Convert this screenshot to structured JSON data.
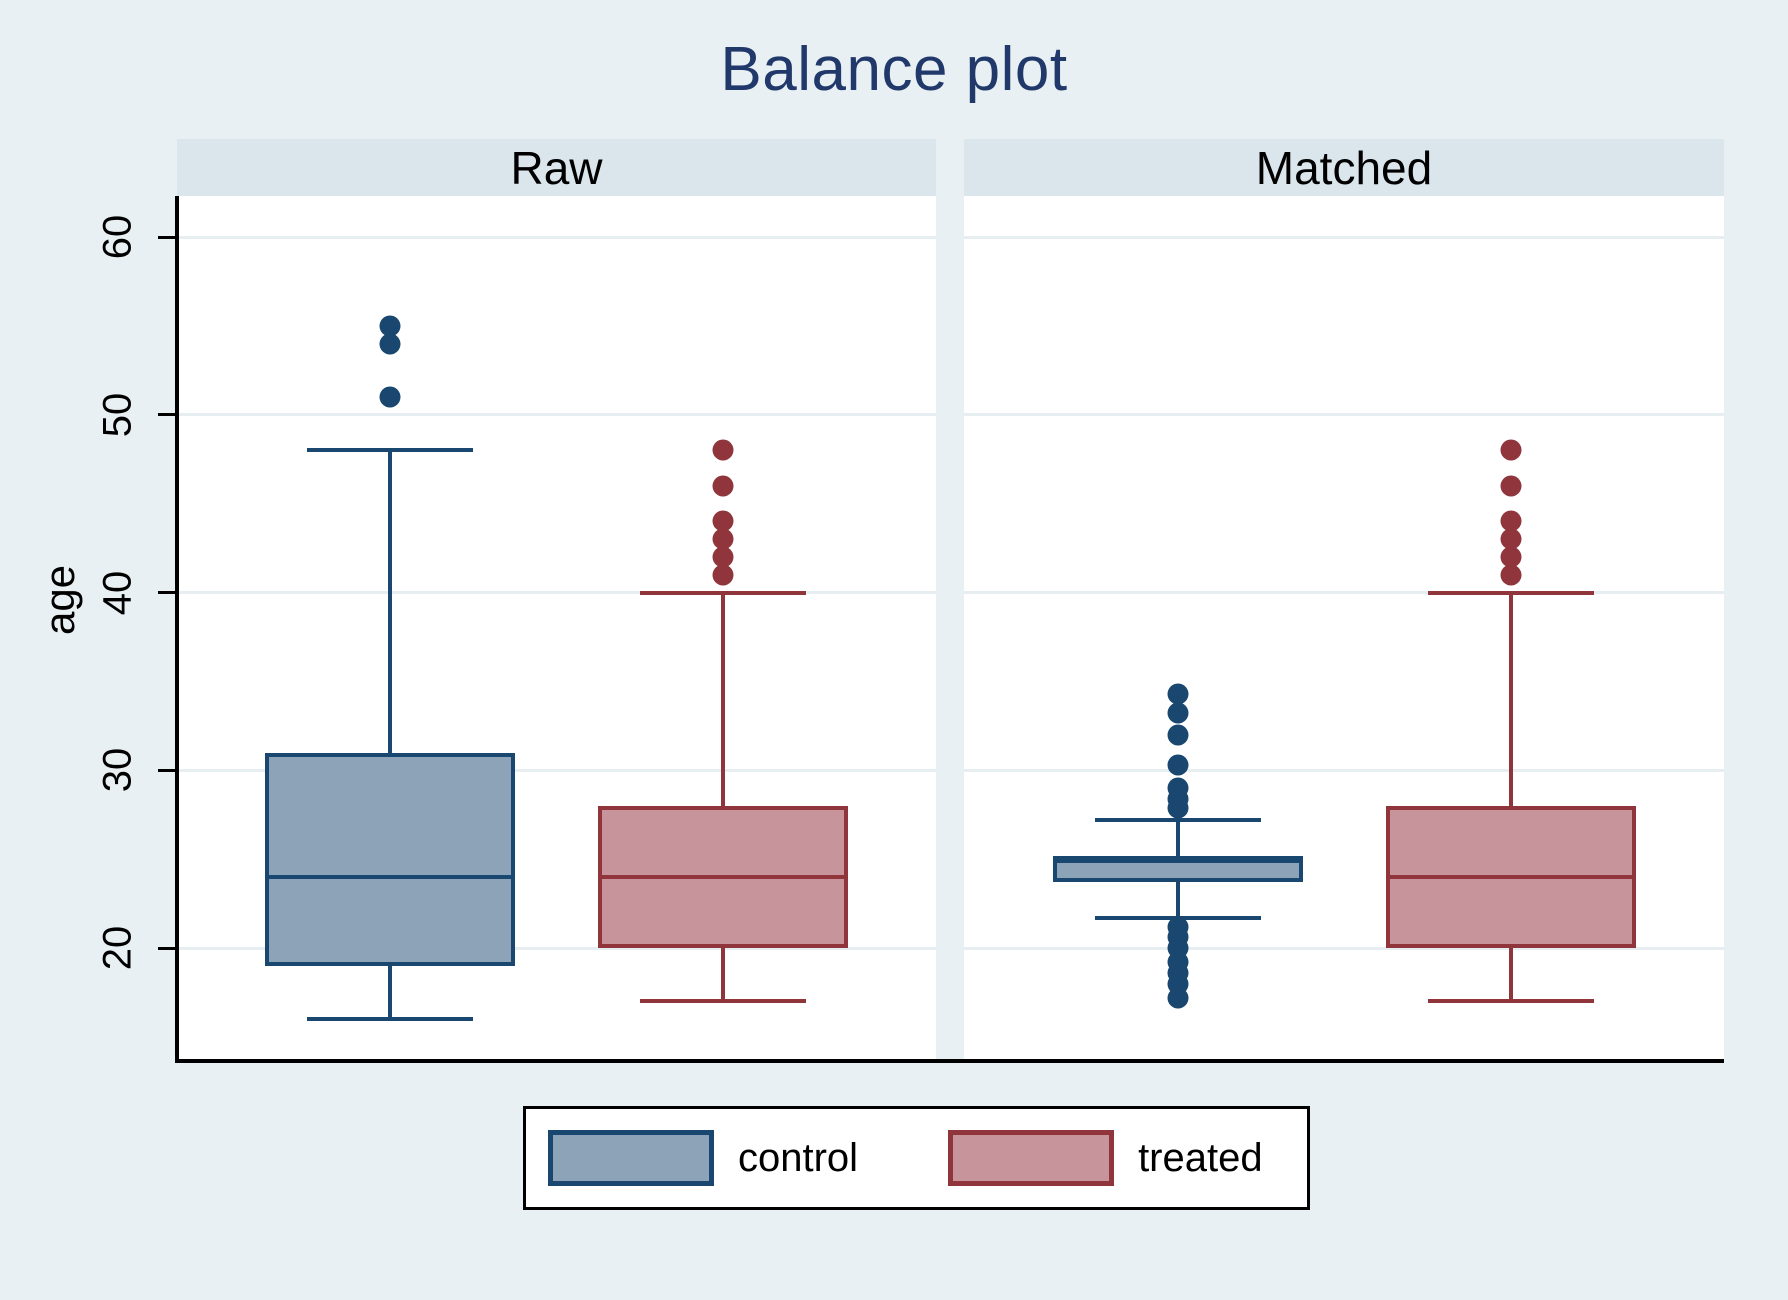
{
  "title": "Balance plot",
  "ylabel": "age",
  "chart_data": {
    "type": "boxplot",
    "title": "Balance plot",
    "ylabel": "age",
    "xlabel": "",
    "y_ticks": [
      20,
      30,
      40,
      50,
      60
    ],
    "y_range_visible": [
      13.8,
      62.3
    ],
    "grid": true,
    "legend_position": "bottom-center",
    "panel_labels": [
      "Raw",
      "Matched"
    ],
    "series": [
      {
        "name": "control",
        "fill": "#8da3b8",
        "stroke": "#1a476f"
      },
      {
        "name": "treated",
        "fill": "#c8949b",
        "stroke": "#90353b"
      }
    ],
    "panels": [
      {
        "label": "Raw",
        "groups": [
          {
            "series": "control",
            "lower_whisker": 16,
            "q1": 19,
            "median": 24,
            "q3": 31,
            "upper_whisker": 48,
            "outliers": [
              51,
              54,
              55
            ]
          },
          {
            "series": "treated",
            "lower_whisker": 17,
            "q1": 20,
            "median": 24,
            "q3": 28,
            "upper_whisker": 40,
            "outliers": [
              41,
              42,
              43,
              44,
              46,
              48
            ]
          }
        ]
      },
      {
        "label": "Matched",
        "groups": [
          {
            "series": "control",
            "lower_whisker": 21.7,
            "q1": 23.7,
            "median": 24.9,
            "q3": 25.2,
            "upper_whisker": 27.2,
            "outliers": [
              34.3,
              33.2,
              32,
              30.3,
              29,
              28.4,
              27.9,
              21.2,
              20.6,
              20,
              19.2,
              18.6,
              18,
              17.2
            ]
          },
          {
            "series": "treated",
            "lower_whisker": 17,
            "q1": 20,
            "median": 24,
            "q3": 28,
            "upper_whisker": 40,
            "outliers": [
              41,
              42,
              43,
              44,
              46,
              48
            ]
          }
        ]
      }
    ]
  },
  "colors": {
    "background": "#e9f0f3",
    "panel_header_bg": "#dbe6ec",
    "plot_bg": "#ffffff",
    "gridline": "#e7eef2",
    "axis": "#000000",
    "title_text": "#21386b",
    "control_fill": "#8da3b8",
    "control_stroke": "#1a476f",
    "treated_fill": "#c8949b",
    "treated_stroke": "#90353b"
  }
}
